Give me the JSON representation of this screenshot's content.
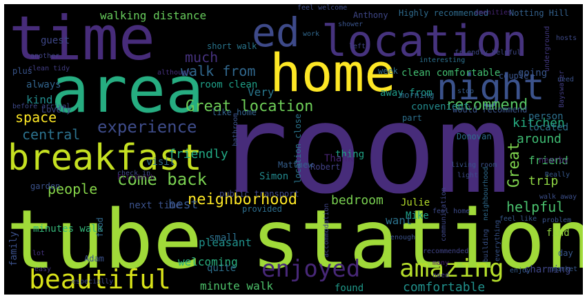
{
  "words": [
    {
      "text": "room",
      "color": "#472c7a"
    },
    {
      "text": "tube station",
      "color": "#a0da39"
    },
    {
      "text": "area",
      "color": "#26ad81"
    },
    {
      "text": "time",
      "color": "#472c7a"
    },
    {
      "text": "home",
      "color": "#fde725"
    },
    {
      "text": "location",
      "color": "#46337e"
    },
    {
      "text": "breakfast",
      "color": "#c5e021"
    },
    {
      "text": "night",
      "color": "#3b528b"
    },
    {
      "text": "ed",
      "color": "#3e4a89"
    },
    {
      "text": "beautiful",
      "color": "#d8e219"
    },
    {
      "text": "amazing",
      "color": "#b5de2b"
    },
    {
      "text": "enjoyed",
      "color": "#482878"
    },
    {
      "text": "experience",
      "color": "#3e4c8a"
    },
    {
      "text": "come back",
      "color": "#7ad151"
    },
    {
      "text": "neighborhood",
      "color": "#fde725"
    },
    {
      "text": "Great location",
      "color": "#6ece58"
    },
    {
      "text": "recommend",
      "color": "#58c765"
    },
    {
      "text": "walk from",
      "color": "#31688e"
    },
    {
      "text": "much",
      "color": "#46327e"
    },
    {
      "text": "walking distance",
      "color": "#67cc5c"
    },
    {
      "text": "central",
      "color": "#2c728e"
    },
    {
      "text": "people",
      "color": "#86d549"
    },
    {
      "text": "space",
      "color": "#fde725"
    },
    {
      "text": "Great",
      "color": "#7fd34e"
    },
    {
      "text": "kitchen",
      "color": "#26ad81"
    },
    {
      "text": "around",
      "color": "#3fbc73"
    },
    {
      "text": "helpful",
      "color": "#4ac16d"
    },
    {
      "text": "comfortable",
      "color": "#21918c"
    },
    {
      "text": "minute walk",
      "color": "#4ec36b"
    },
    {
      "text": "bedroom",
      "color": "#7ad151"
    },
    {
      "text": "clean comfortable",
      "color": "#42be71"
    },
    {
      "text": "room clean",
      "color": "#1fa088"
    },
    {
      "text": "friendly",
      "color": "#22a884"
    },
    {
      "text": "best",
      "color": "#38588c"
    },
    {
      "text": "Very",
      "color": "#2a788e"
    },
    {
      "text": "away from",
      "color": "#1e9c89"
    },
    {
      "text": "minutes walk",
      "color": "#35b779"
    },
    {
      "text": "next time",
      "color": "#3b528b"
    },
    {
      "text": "pleasant",
      "color": "#20928c"
    },
    {
      "text": "welcoming",
      "color": "#2ab07f"
    },
    {
      "text": "quite",
      "color": "#2d708e"
    },
    {
      "text": "small",
      "color": "#2c718e"
    },
    {
      "text": "found",
      "color": "#1f998a"
    },
    {
      "text": "want",
      "color": "#2c738e"
    },
    {
      "text": "find",
      "color": "#95d840"
    },
    {
      "text": "trip",
      "color": "#8fd744"
    },
    {
      "text": "friend",
      "color": "#4ac16d"
    },
    {
      "text": "kind",
      "color": "#228c8d"
    },
    {
      "text": "always",
      "color": "#32658e"
    },
    {
      "text": "guest",
      "color": "#3f4889"
    },
    {
      "text": "visit",
      "color": "#2f6c8e"
    },
    {
      "text": "thing",
      "color": "#20a386"
    },
    {
      "text": "Simon",
      "color": "#23898e"
    },
    {
      "text": "Julie",
      "color": "#b5de2b"
    },
    {
      "text": "Mike",
      "color": "#1f9f88"
    },
    {
      "text": "person",
      "color": "#2d708e"
    },
    {
      "text": "located",
      "color": "#2d708e"
    },
    {
      "text": "convenient",
      "color": "#238a8d"
    },
    {
      "text": "going",
      "color": "#39568c"
    },
    {
      "text": "couple",
      "color": "#3a548c"
    },
    {
      "text": "week",
      "color": "#2e6e8e"
    },
    {
      "text": "Lovely",
      "color": "#3e4989"
    },
    {
      "text": "family",
      "color": "#3b518b"
    },
    {
      "text": "charming",
      "color": "#404688"
    },
    {
      "text": "enjoy",
      "color": "#365d8d"
    },
    {
      "text": "Thank",
      "color": "#482374"
    },
    {
      "text": "Robert",
      "color": "#424186"
    },
    {
      "text": "nearby",
      "color": "#481f70"
    },
    {
      "text": "plus",
      "color": "#39558c"
    },
    {
      "text": "short walk",
      "color": "#2a768e"
    },
    {
      "text": "Anthony",
      "color": "#3f4788"
    },
    {
      "text": "left",
      "color": "#414487"
    },
    {
      "text": "Highly recommended",
      "color": "#2f6b8e"
    },
    {
      "text": "Notting Hill",
      "color": "#34618d"
    },
    {
      "text": "feel welcome",
      "color": "#3d4d8a"
    },
    {
      "text": "shower",
      "color": "#3a548c"
    },
    {
      "text": "amenities",
      "color": "#482677"
    },
    {
      "text": "morning",
      "color": "#2d708e"
    },
    {
      "text": "Donovan",
      "color": "#2e6e8e"
    },
    {
      "text": "would recommend",
      "color": "#3a548c"
    },
    {
      "text": "stop",
      "color": "#365d8d"
    },
    {
      "text": "Matthew",
      "color": "#355f8d"
    },
    {
      "text": "part",
      "color": "#2d718e"
    },
    {
      "text": "like home",
      "color": "#33638d"
    },
    {
      "text": "location close",
      "color": "#2b758e"
    },
    {
      "text": "check in",
      "color": "#3e4a89"
    },
    {
      "text": "public transport",
      "color": "#3f4889"
    },
    {
      "text": "provided",
      "color": "#2e6f8e"
    },
    {
      "text": "feel like",
      "color": "#38598c"
    },
    {
      "text": "bathroom",
      "color": "#3b528b"
    },
    {
      "text": "day",
      "color": "#38588c"
    },
    {
      "text": "Adam",
      "color": "#3b528b"
    },
    {
      "text": "food",
      "color": "#31688e"
    },
    {
      "text": "garden",
      "color": "#3b528b"
    },
    {
      "text": "easy",
      "color": "#453781"
    },
    {
      "text": "especially",
      "color": "#3e4a89"
    },
    {
      "text": "lot",
      "color": "#46337e"
    },
    {
      "text": "Elizabeth",
      "color": "#481467"
    },
    {
      "text": "underground",
      "color": "#443983"
    },
    {
      "text": "friendly helpful",
      "color": "#3f4788"
    },
    {
      "text": "clean tidy",
      "color": "#433e85"
    },
    {
      "text": "another",
      "color": "#414487"
    },
    {
      "text": "although",
      "color": "#46307e"
    },
    {
      "text": "need",
      "color": "#3b528b"
    },
    {
      "text": "work",
      "color": "#31688e"
    },
    {
      "text": "hosts",
      "color": "#3e4a89"
    },
    {
      "text": "interesting",
      "color": "#2d708e"
    },
    {
      "text": "market",
      "color": "#38598c"
    },
    {
      "text": "enough",
      "color": "#3b528b"
    },
    {
      "text": "many",
      "color": "#482173"
    },
    {
      "text": "need",
      "color": "#433d84"
    },
    {
      "text": "everything",
      "color": "#39558c"
    },
    {
      "text": "building",
      "color": "#3a538b"
    },
    {
      "text": "recommended",
      "color": "#414487"
    },
    {
      "text": "accommodation",
      "color": "#404588"
    },
    {
      "text": "before arrival",
      "color": "#3e4989"
    },
    {
      "text": "walk away",
      "color": "#3c4f8a"
    },
    {
      "text": "Really",
      "color": "#37598c"
    },
    {
      "text": "problem",
      "color": "#3a548c"
    },
    {
      "text": "feel home",
      "color": "#3e4c8a"
    },
    {
      "text": "neighbourhood",
      "color": "#2f6b8e"
    },
    {
      "text": "Bayswater",
      "color": "#433e85"
    },
    {
      "text": "living room",
      "color": "#3b528b"
    },
    {
      "text": "light",
      "color": "#3e4a89"
    },
    {
      "text": "communication",
      "color": "#3f4889"
    }
  ]
}
